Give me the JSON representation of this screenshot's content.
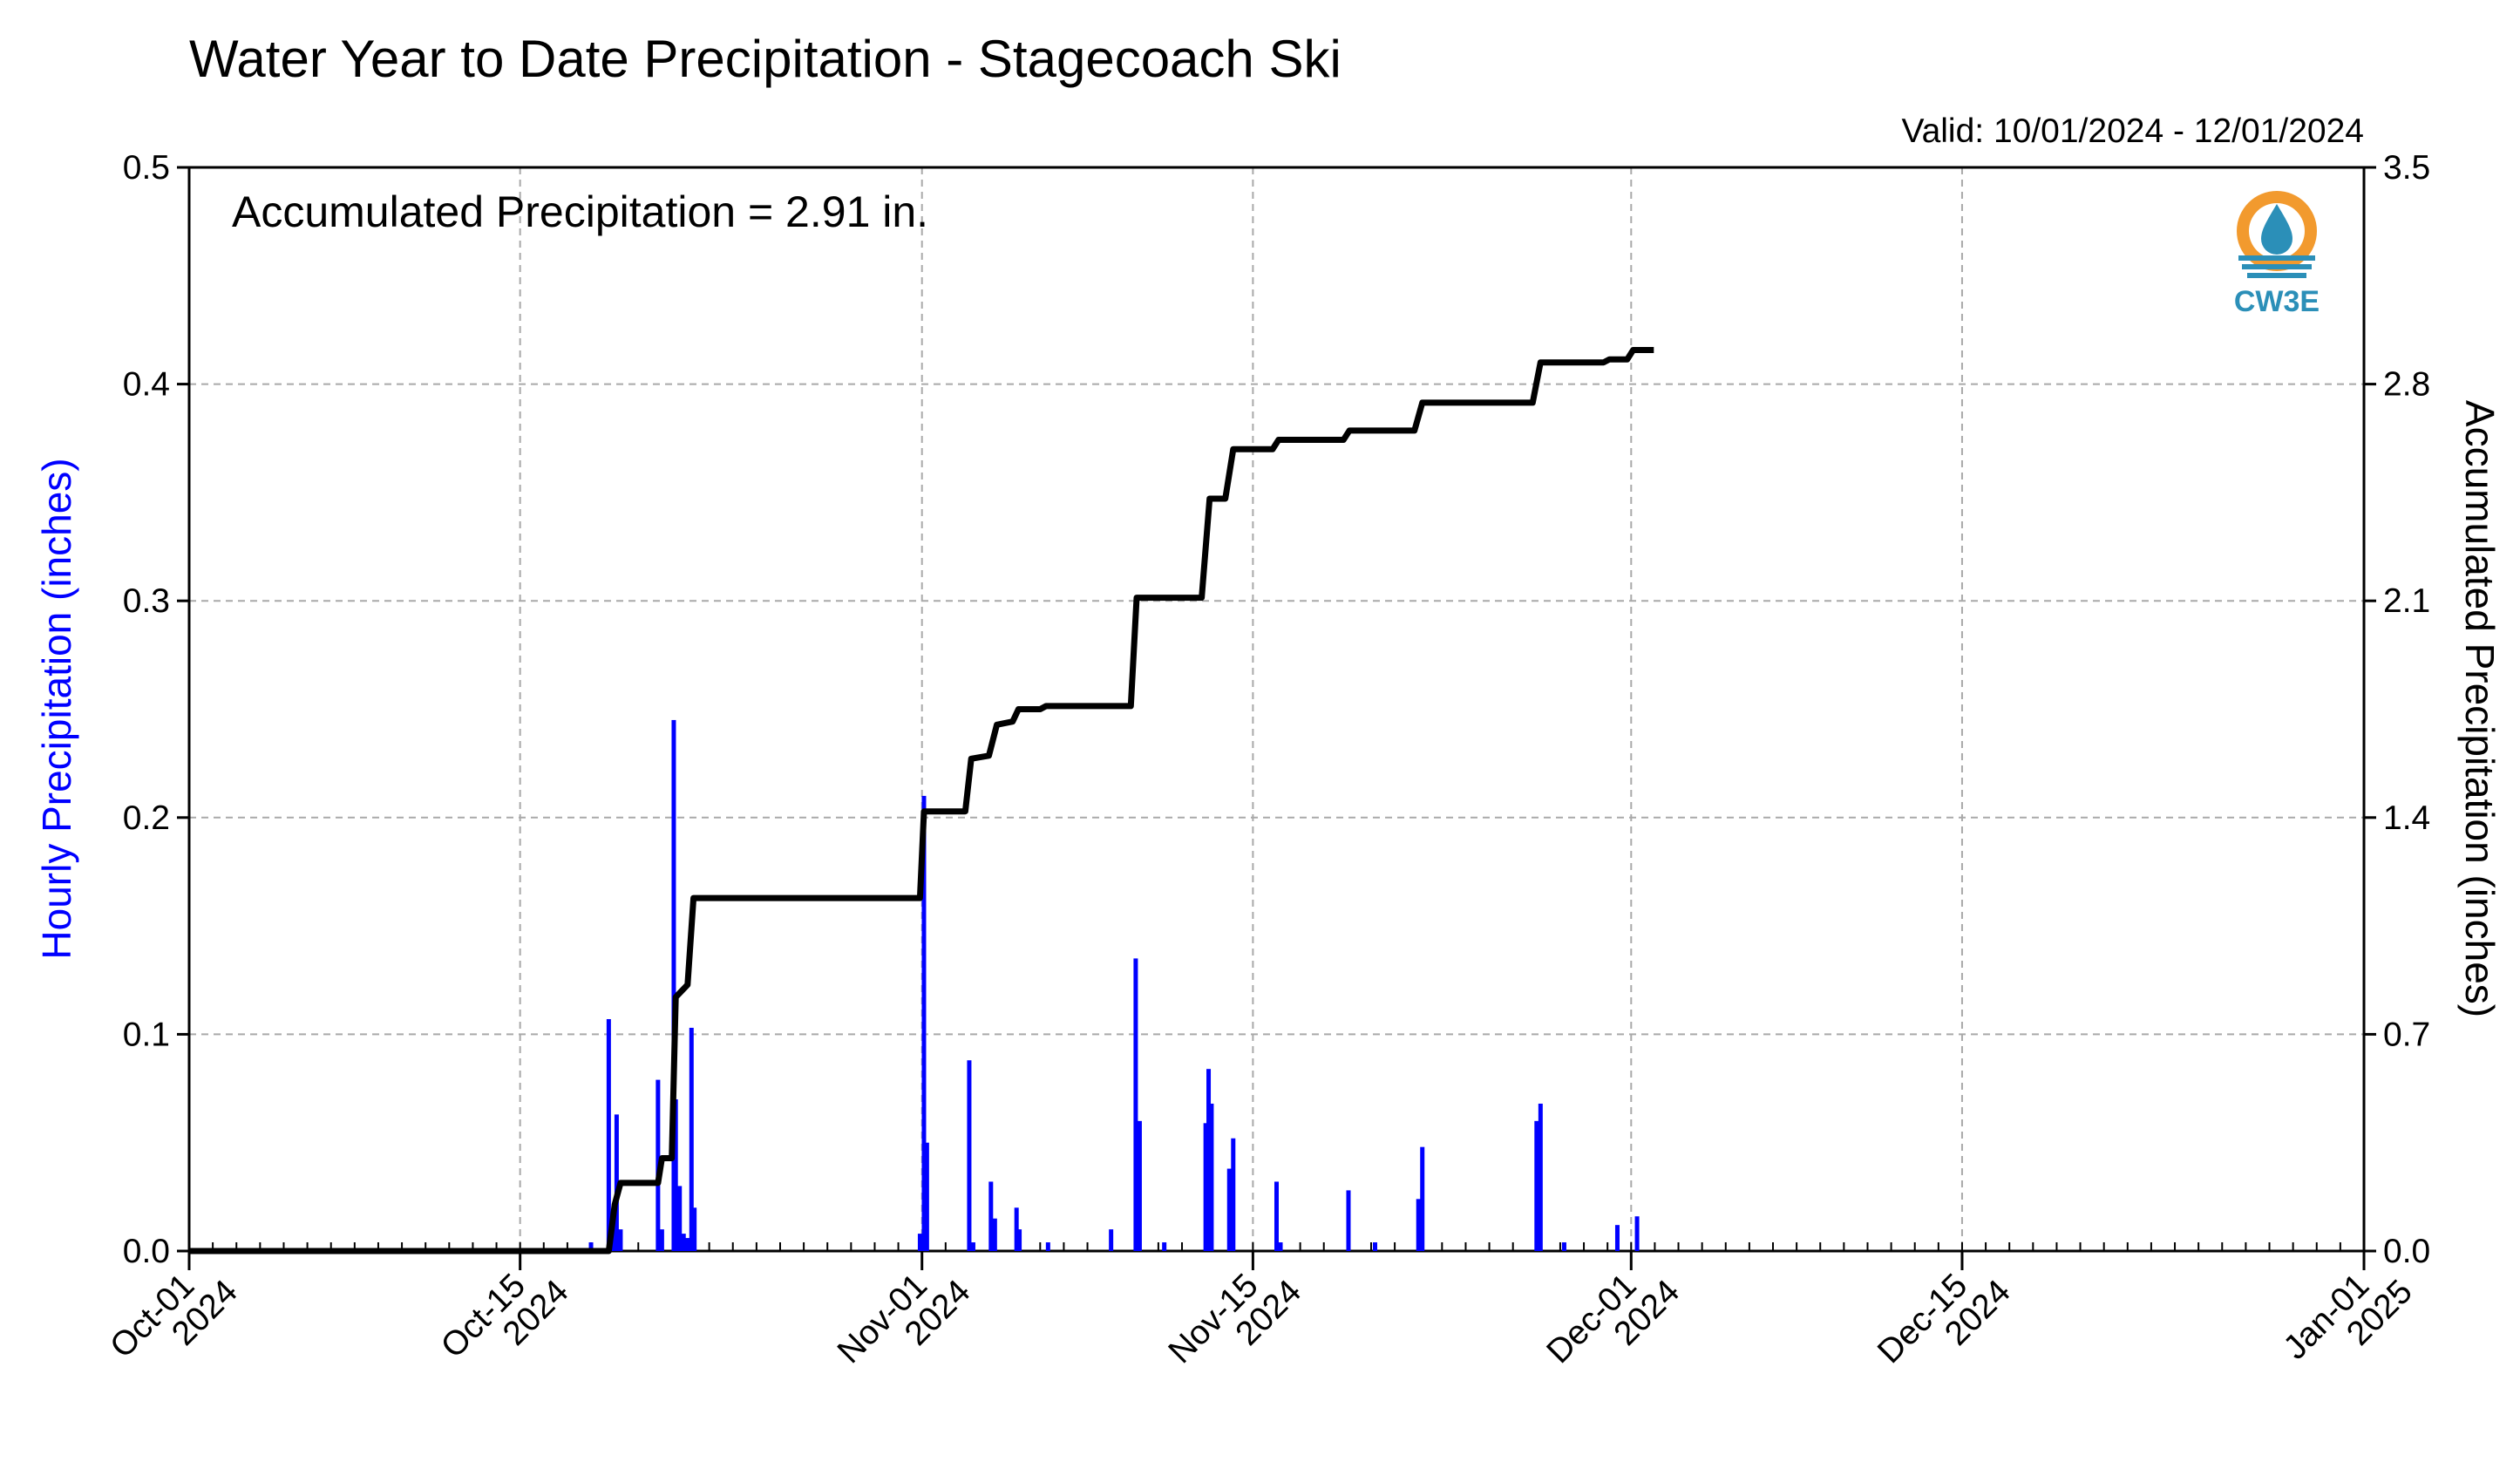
{
  "chart_data": {
    "type": "bar+line",
    "title": "Water Year to Date Precipitation - Stagecoach Ski",
    "valid_text": "Valid: 10/01/2024 - 12/01/2024",
    "annotation": "Accumulated Precipitation = 2.91 in.",
    "logo_text": "CW3E",
    "x_axis": {
      "range": [
        "2024-10-01",
        "2025-01-01"
      ],
      "ticks": [
        {
          "date": "2024-10-01",
          "line1": "Oct-01",
          "line2": "2024"
        },
        {
          "date": "2024-10-15",
          "line1": "Oct-15",
          "line2": "2024"
        },
        {
          "date": "2024-11-01",
          "line1": "Nov-01",
          "line2": "2024"
        },
        {
          "date": "2024-11-15",
          "line1": "Nov-15",
          "line2": "2024"
        },
        {
          "date": "2024-12-01",
          "line1": "Dec-01",
          "line2": "2024"
        },
        {
          "date": "2024-12-15",
          "line1": "Dec-15",
          "line2": "2024"
        },
        {
          "date": "2025-01-01",
          "line1": "Jan-01",
          "line2": "2025"
        }
      ]
    },
    "left_axis": {
      "label": "Hourly Precipitation (inches)",
      "color": "#0000ff",
      "range": [
        0,
        0.5
      ],
      "ticks": [
        "0.0",
        "0.1",
        "0.2",
        "0.3",
        "0.4",
        "0.5"
      ]
    },
    "right_axis": {
      "label": "Accumulated Precipitation (inches)",
      "range": [
        0,
        3.5
      ],
      "ticks": [
        "0.0",
        "0.7",
        "1.4",
        "2.1",
        "2.8",
        "3.5"
      ]
    },
    "grid": true,
    "colors": {
      "hourly": "#0000ff",
      "accumulated": "#000000"
    },
    "series": [
      {
        "name": "Hourly Precipitation",
        "type": "bar",
        "points": [
          [
            "2024-10-18T00",
            0.004
          ],
          [
            "2024-10-18T18",
            0.107
          ],
          [
            "2024-10-18T22",
            0.015
          ],
          [
            "2024-10-19T02",
            0.063
          ],
          [
            "2024-10-19T06",
            0.01
          ],
          [
            "2024-10-20T20",
            0.079
          ],
          [
            "2024-10-21T00",
            0.01
          ],
          [
            "2024-10-21T12",
            0.245
          ],
          [
            "2024-10-21T14",
            0.07
          ],
          [
            "2024-10-21T18",
            0.03
          ],
          [
            "2024-10-21T22",
            0.008
          ],
          [
            "2024-10-22T02",
            0.006
          ],
          [
            "2024-10-22T06",
            0.103
          ],
          [
            "2024-10-22T09",
            0.02
          ],
          [
            "2024-10-31T22",
            0.008
          ],
          [
            "2024-11-01T02",
            0.21
          ],
          [
            "2024-11-01T05",
            0.05
          ],
          [
            "2024-11-03T00",
            0.088
          ],
          [
            "2024-11-03T04",
            0.004
          ],
          [
            "2024-11-03T22",
            0.032
          ],
          [
            "2024-11-04T02",
            0.015
          ],
          [
            "2024-11-05T00",
            0.02
          ],
          [
            "2024-11-05T03",
            0.01
          ],
          [
            "2024-11-06T08",
            0.004
          ],
          [
            "2024-11-09T00",
            0.01
          ],
          [
            "2024-11-10T01",
            0.135
          ],
          [
            "2024-11-10T05",
            0.06
          ],
          [
            "2024-11-11T06",
            0.004
          ],
          [
            "2024-11-13T00",
            0.059
          ],
          [
            "2024-11-13T03",
            0.084
          ],
          [
            "2024-11-13T06",
            0.068
          ],
          [
            "2024-11-14T00",
            0.038
          ],
          [
            "2024-11-14T04",
            0.052
          ],
          [
            "2024-11-16T00",
            0.032
          ],
          [
            "2024-11-16T04",
            0.004
          ],
          [
            "2024-11-19T01",
            0.028
          ],
          [
            "2024-11-20T04",
            0.004
          ],
          [
            "2024-11-22T00",
            0.024
          ],
          [
            "2024-11-22T04",
            0.048
          ],
          [
            "2024-11-27T00",
            0.06
          ],
          [
            "2024-11-27T04",
            0.068
          ],
          [
            "2024-11-28T04",
            0.004
          ],
          [
            "2024-11-30T10",
            0.012
          ],
          [
            "2024-12-01T06",
            0.016
          ]
        ]
      },
      {
        "name": "Accumulated Precipitation",
        "type": "line",
        "points": [
          [
            "2024-10-01T00",
            0.0
          ],
          [
            "2024-10-18T18",
            0.0
          ],
          [
            "2024-10-19T00",
            0.15
          ],
          [
            "2024-10-19T06",
            0.22
          ],
          [
            "2024-10-20T20",
            0.22
          ],
          [
            "2024-10-21T00",
            0.3
          ],
          [
            "2024-10-21T10",
            0.3
          ],
          [
            "2024-10-21T14",
            0.82
          ],
          [
            "2024-10-21T20",
            0.84
          ],
          [
            "2024-10-22T02",
            0.86
          ],
          [
            "2024-10-22T08",
            1.14
          ],
          [
            "2024-10-31T22",
            1.14
          ],
          [
            "2024-11-01T02",
            1.42
          ],
          [
            "2024-11-02T20",
            1.42
          ],
          [
            "2024-11-03T02",
            1.59
          ],
          [
            "2024-11-03T20",
            1.6
          ],
          [
            "2024-11-04T04",
            1.7
          ],
          [
            "2024-11-04T20",
            1.71
          ],
          [
            "2024-11-05T02",
            1.75
          ],
          [
            "2024-11-06T00",
            1.75
          ],
          [
            "2024-11-06T06",
            1.76
          ],
          [
            "2024-11-09T20",
            1.76
          ],
          [
            "2024-11-10T02",
            2.11
          ],
          [
            "2024-11-12T20",
            2.11
          ],
          [
            "2024-11-13T04",
            2.43
          ],
          [
            "2024-11-13T20",
            2.43
          ],
          [
            "2024-11-14T04",
            2.59
          ],
          [
            "2024-11-15T20",
            2.59
          ],
          [
            "2024-11-16T02",
            2.62
          ],
          [
            "2024-11-18T20",
            2.62
          ],
          [
            "2024-11-19T02",
            2.65
          ],
          [
            "2024-11-21T20",
            2.65
          ],
          [
            "2024-11-22T04",
            2.74
          ],
          [
            "2024-11-26T20",
            2.74
          ],
          [
            "2024-11-27T04",
            2.87
          ],
          [
            "2024-11-29T20",
            2.87
          ],
          [
            "2024-11-30T02",
            2.88
          ],
          [
            "2024-11-30T20",
            2.88
          ],
          [
            "2024-12-01T02",
            2.91
          ],
          [
            "2024-12-01T23",
            2.91
          ]
        ]
      }
    ]
  }
}
